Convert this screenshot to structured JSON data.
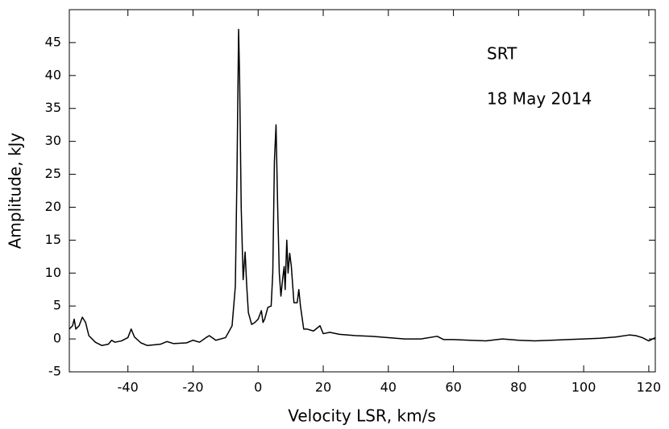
{
  "chart_data": {
    "type": "line",
    "annotations": [
      "SRT",
      "18 May 2014"
    ],
    "x_label": "Velocity LSR, km/s",
    "y_label": "Amplitude, kJy",
    "xlim": [
      -58,
      122
    ],
    "ylim": [
      -5,
      50
    ],
    "xticks": [
      -40,
      -20,
      0,
      20,
      40,
      60,
      80,
      100,
      120
    ],
    "yticks": [
      -5,
      0,
      5,
      10,
      15,
      20,
      25,
      30,
      35,
      40,
      45
    ],
    "grid": false,
    "color": "#000000",
    "x": [
      -58,
      -57,
      -56.5,
      -56,
      -55,
      -54,
      -53,
      -52,
      -50,
      -48,
      -46,
      -45,
      -44,
      -42,
      -40,
      -39,
      -38,
      -36,
      -34,
      -30,
      -28,
      -26,
      -22,
      -20,
      -18,
      -16,
      -15,
      -13,
      -10,
      -8,
      -7,
      -6.5,
      -6,
      -5.7,
      -5.2,
      -4.6,
      -4,
      -3.5,
      -3,
      -2,
      -1,
      0,
      1,
      1.5,
      2,
      3,
      4,
      4.5,
      5,
      5.5,
      6,
      6.5,
      7,
      7.5,
      8,
      8.3,
      8.8,
      9.2,
      9.7,
      10.2,
      11,
      12,
      12.5,
      13,
      14,
      15,
      17,
      19,
      20,
      22,
      25,
      30,
      35,
      40,
      45,
      50,
      55,
      57,
      60,
      65,
      70,
      75,
      80,
      85,
      90,
      95,
      100,
      105,
      110,
      114,
      116,
      118,
      120,
      122
    ],
    "values": [
      1.5,
      2.0,
      3.0,
      1.5,
      2.0,
      3.3,
      2.5,
      0.5,
      -0.5,
      -1.0,
      -0.8,
      -0.2,
      -0.5,
      -0.3,
      0.2,
      1.5,
      0.3,
      -0.6,
      -1.0,
      -0.8,
      -0.4,
      -0.7,
      -0.6,
      -0.2,
      -0.5,
      0.2,
      0.5,
      -0.2,
      0.2,
      2.0,
      8,
      25,
      47,
      40,
      20,
      9,
      13.2,
      8,
      4,
      2.2,
      2.5,
      3,
      4.3,
      2.5,
      3,
      4.8,
      5,
      10,
      27,
      32.5,
      20,
      10,
      6.5,
      9,
      11,
      7.5,
      15,
      10,
      13,
      11,
      5.5,
      5.5,
      7.5,
      5,
      1.5,
      1.5,
      1.2,
      2,
      0.8,
      1,
      0.7,
      0.5,
      0.4,
      0.2,
      0,
      0,
      0.4,
      -0.1,
      -0.1,
      -0.2,
      -0.3,
      0,
      -0.2,
      -0.3,
      -0.2,
      -0.1,
      0,
      0.1,
      0.3,
      0.6,
      0.5,
      0.2,
      -0.3,
      0.2
    ]
  }
}
